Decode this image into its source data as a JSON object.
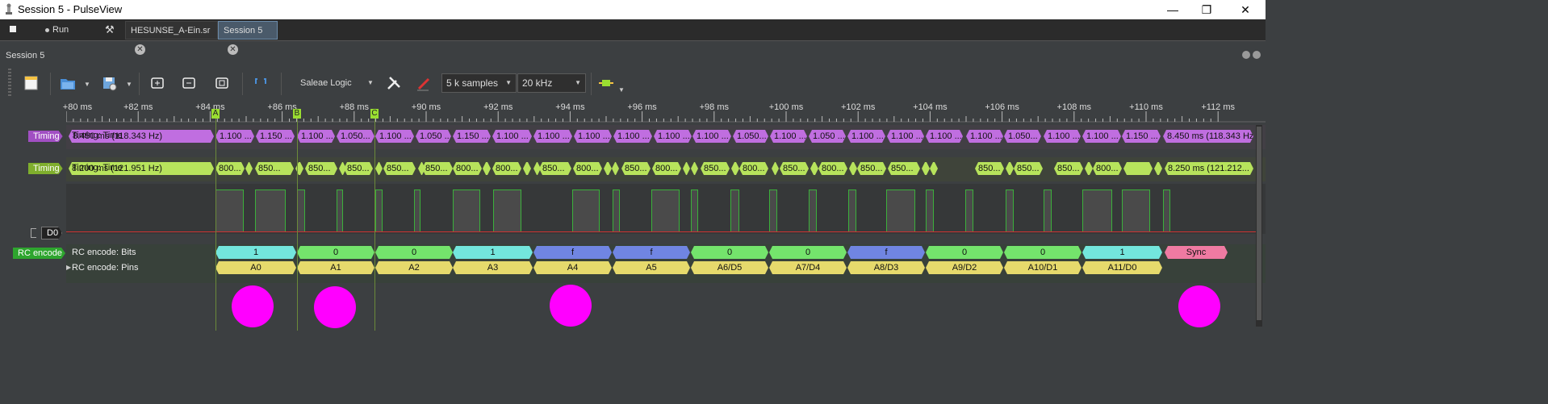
{
  "window": {
    "title": "Session 5 - PulseView",
    "controls": [
      "—",
      "❐",
      "✕"
    ]
  },
  "tabbar": {
    "stop_icon": "stop-icon",
    "run_label": "Run",
    "tools_icon": "tools-icon",
    "tabs": [
      {
        "label": "HESUNSE_A-Ein.sr"
      },
      {
        "label": "Session 5"
      }
    ]
  },
  "session": {
    "label": "Session 5"
  },
  "toolbar": {
    "device": "Saleae Logic",
    "samples": "5 k samples",
    "rate": "20 kHz"
  },
  "ruler": {
    "ticks": [
      "+80 ms",
      "+82 ms",
      "+84 ms",
      "+86 ms",
      "+88 ms",
      "+90 ms",
      "+92 ms",
      "+94 ms",
      "+96 ms",
      "+98 ms",
      "+100 ms",
      "+102 ms",
      "+104 ms",
      "+106 ms",
      "+108 ms",
      "+110 ms",
      "+112 ms"
    ],
    "markers": [
      "A",
      "B",
      "C"
    ]
  },
  "channels": {
    "timing1": "Timing",
    "timing2": "Timing",
    "d0": "D0",
    "rc": "RC encode"
  },
  "row_labels": {
    "timing1": "Timing: Time",
    "timing2": "Timing: Time",
    "bits": "RC encode: Bits",
    "pins": "RC encode: Pins"
  },
  "timing1": [
    "8.450 ms (118.343 Hz)",
    "1.100 ...",
    "1.150 ...",
    "1.100 ...",
    "1.050...",
    "1.100 ...",
    "1.050 ...",
    "1.150 ...",
    "1.100 ...",
    "1.100 ...",
    "1.100 ...",
    "1.100 ...",
    "1.100 ...",
    "1.100 ...",
    "1.050...",
    "1.100 ...",
    "1.050 ...",
    "1.100 ...",
    "1.100 ...",
    "1.100 ...",
    "1.100 ...",
    "1.050...",
    "1.100 ...",
    "1.100 ...",
    "1.150 ...",
    "8.450 ms (118.343 Hz)"
  ],
  "timing2": [
    "8.200 ms (121.951 Hz)",
    "800...",
    "850...",
    "850...",
    "850...",
    "850...",
    "850...",
    "800...",
    "800...",
    "850...",
    "800...",
    "850...",
    "800...",
    "850...",
    "800...",
    "850...",
    "800...",
    "850...",
    "850...",
    "850...",
    "850...",
    "850...",
    "800...",
    "8.250 ms (121.212..."
  ],
  "bits": [
    "1",
    "0",
    "0",
    "1",
    "f",
    "f",
    "0",
    "0",
    "f",
    "0",
    "0",
    "1",
    "Sync"
  ],
  "pins": [
    "A0",
    "A1",
    "A2",
    "A3",
    "A4",
    "A5",
    "A6/D5",
    "A7/D4",
    "A8/D3",
    "A9/D2",
    "A10/D1",
    "A11/D0"
  ],
  "colors": {
    "accent": "#9ade31",
    "timing1": "#c06ee0",
    "timing2": "#b7e35c",
    "dots": "#ff00ff"
  }
}
